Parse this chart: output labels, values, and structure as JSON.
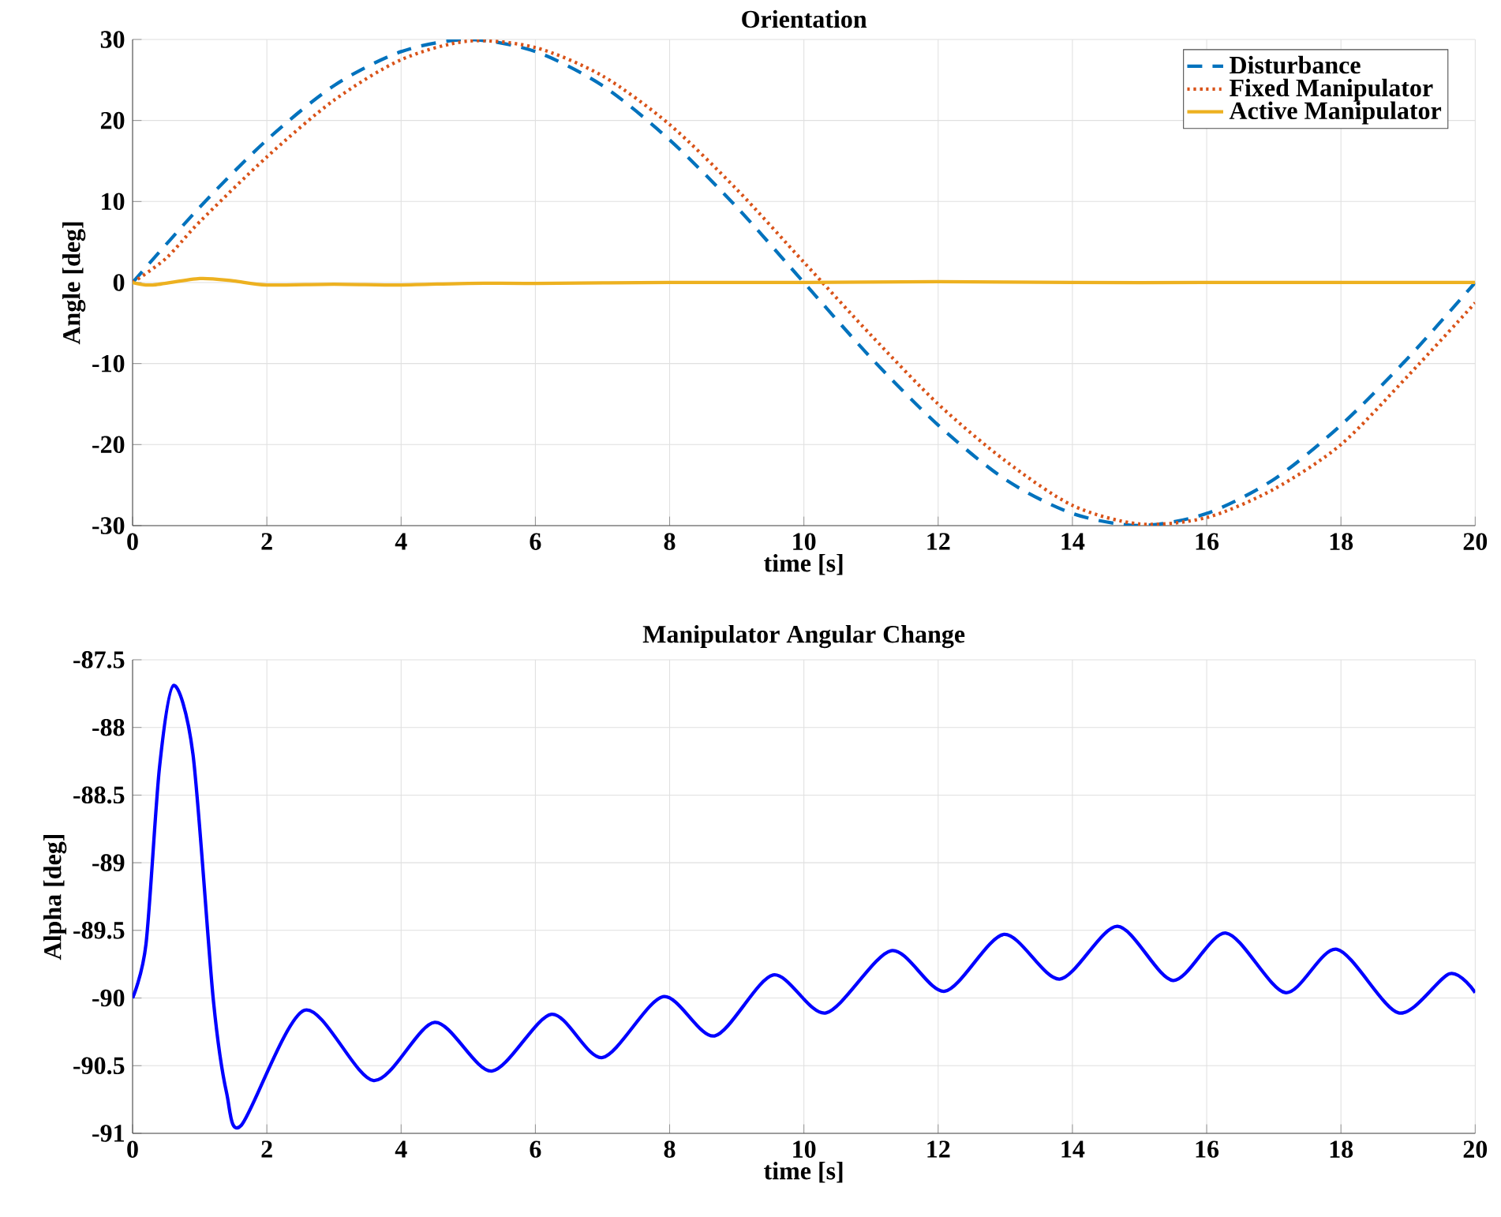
{
  "chart_data": [
    {
      "type": "line",
      "title": "Orientation",
      "xlabel": "time [s]",
      "ylabel": "Angle [deg]",
      "xlim": [
        0,
        20
      ],
      "ylim": [
        -30,
        30
      ],
      "xticks": [
        0,
        2,
        4,
        6,
        8,
        10,
        12,
        14,
        16,
        18,
        20
      ],
      "yticks": [
        -30,
        -20,
        -10,
        0,
        10,
        20,
        30
      ],
      "grid": true,
      "legend": "top right",
      "marker": "none",
      "series": [
        {
          "name": "Disturbance",
          "color": "#0072bd",
          "line_style": "dashed",
          "x": [
            0,
            1,
            2,
            3,
            4,
            5,
            6,
            7,
            8,
            9,
            10,
            11,
            12,
            13,
            14,
            15,
            16,
            17,
            18,
            19,
            20
          ],
          "values": [
            0,
            9.3,
            17.6,
            24.3,
            28.5,
            30,
            28.5,
            24.3,
            17.6,
            9.3,
            0,
            -9.3,
            -17.6,
            -24.3,
            -28.5,
            -30,
            -28.5,
            -24.3,
            -17.6,
            -9.3,
            0
          ]
        },
        {
          "name": "Fixed Manipulator",
          "color": "#d95319",
          "line_style": "dotted",
          "x": [
            0,
            0.5,
            1,
            2,
            3,
            4,
            5,
            6,
            7,
            8,
            9,
            10,
            11,
            12,
            13,
            14,
            15,
            16,
            17,
            18,
            19,
            20
          ],
          "values": [
            0,
            3,
            7.5,
            15.5,
            22.5,
            27.5,
            29.8,
            29,
            25.5,
            19.5,
            11.5,
            2.5,
            -6.5,
            -15,
            -22,
            -27.5,
            -29.8,
            -29,
            -25.5,
            -20,
            -11.5,
            -2.5
          ]
        },
        {
          "name": "Active Manipulator",
          "color": "#edb120",
          "line_style": "solid",
          "x": [
            0,
            0.3,
            1,
            1.5,
            2,
            3,
            4,
            5,
            6,
            8,
            10,
            12,
            14,
            16,
            18,
            20
          ],
          "values": [
            0,
            -0.3,
            0.5,
            0.2,
            -0.3,
            -0.2,
            -0.3,
            -0.1,
            -0.1,
            0,
            0,
            0.1,
            0,
            0,
            0,
            0
          ]
        }
      ]
    },
    {
      "type": "line",
      "title": "Manipulator Angular Change",
      "xlabel": "time [s]",
      "ylabel": "Alpha [deg]",
      "xlim": [
        0,
        20
      ],
      "ylim": [
        -91,
        -87.5
      ],
      "xticks": [
        0,
        2,
        4,
        6,
        8,
        10,
        12,
        14,
        16,
        18,
        20
      ],
      "yticks": [
        -91,
        -90.5,
        -90,
        -89.5,
        -89,
        -88.5,
        -88,
        -87.5
      ],
      "grid": true,
      "marker": "none",
      "series": [
        {
          "color": "#0000ff",
          "line_style": "solid",
          "x": [
            0,
            0.2,
            0.4,
            0.61,
            0.9,
            1.2,
            1.4,
            1.62,
            2.56,
            3.59,
            4.5,
            5.35,
            6.24,
            7.0,
            7.9,
            8.67,
            9.54,
            10.33,
            11.3,
            12.1,
            12.98,
            13.81,
            14.67,
            15.5,
            16.29,
            17.17,
            17.94,
            18.86,
            19.62,
            20
          ],
          "values": [
            -90,
            -89.6,
            -88.3,
            -87.69,
            -88.2,
            -90.0,
            -90.7,
            -90.94,
            -90.09,
            -90.61,
            -90.18,
            -90.54,
            -90.12,
            -90.44,
            -89.99,
            -90.28,
            -89.83,
            -90.11,
            -89.65,
            -89.95,
            -89.53,
            -89.86,
            -89.47,
            -89.87,
            -89.52,
            -89.96,
            -89.64,
            -90.11,
            -89.82,
            -89.96
          ]
        }
      ]
    }
  ]
}
